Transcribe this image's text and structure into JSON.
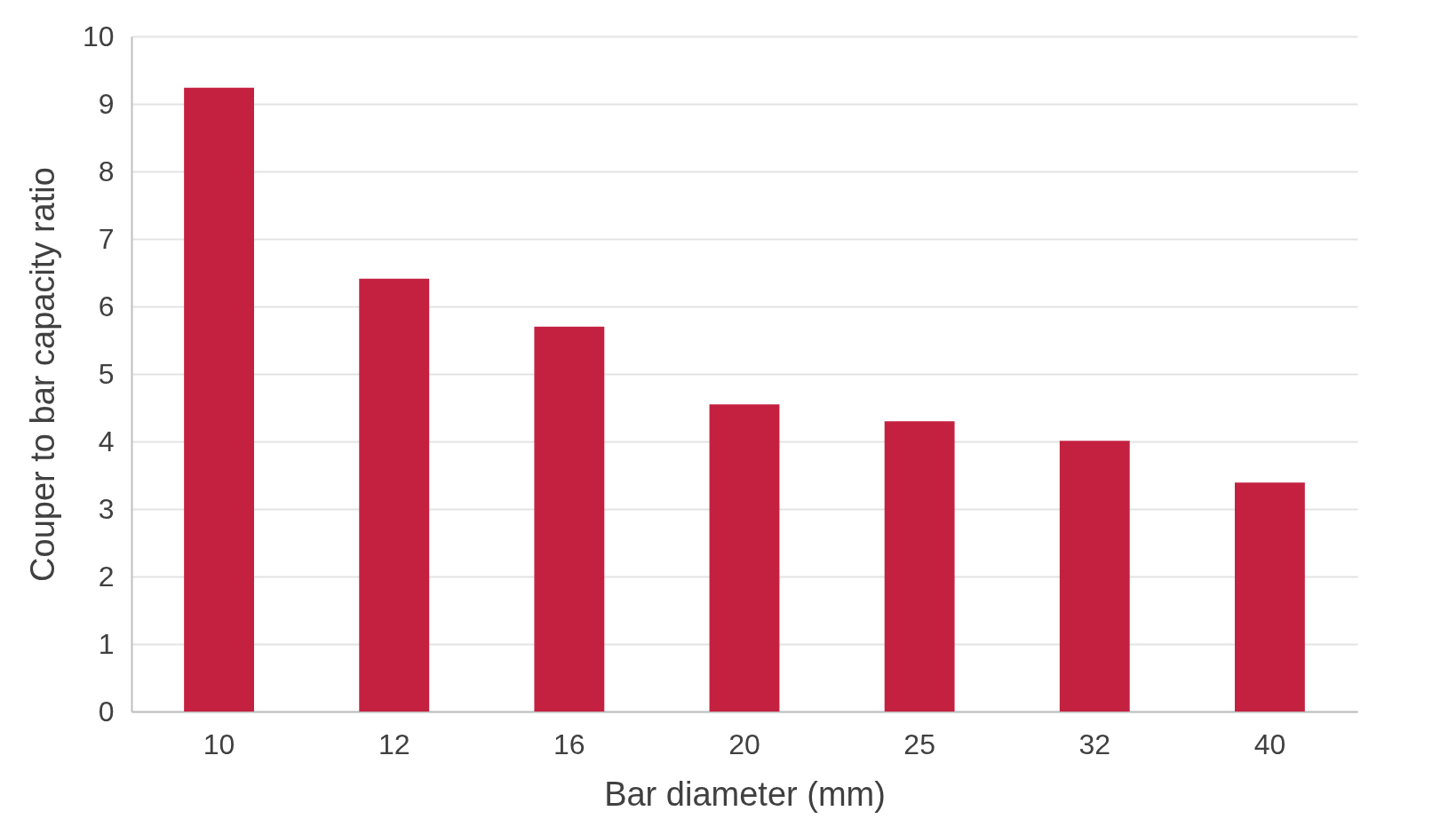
{
  "chart_data": {
    "type": "bar",
    "xlabel": "Bar diameter (mm)",
    "ylabel": "Couper to bar capacity ratio",
    "categories": [
      "10",
      "12",
      "16",
      "20",
      "25",
      "32",
      "40"
    ],
    "values": [
      9.24,
      6.41,
      5.7,
      4.55,
      4.3,
      4.01,
      3.39
    ],
    "color": "#c42140",
    "ylim": [
      0,
      10
    ],
    "yticks": [
      0,
      1,
      2,
      3,
      4,
      5,
      6,
      7,
      8,
      9,
      10
    ],
    "grid": "y"
  }
}
